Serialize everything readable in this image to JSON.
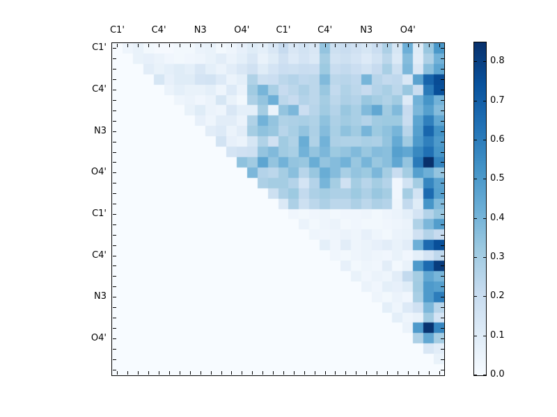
{
  "chart_data": {
    "type": "heatmap",
    "title": "",
    "n": 32,
    "x_tick_labels": [
      "C1'",
      "C4'",
      "N3",
      "O4'",
      "C1'",
      "C4'",
      "N3",
      "O4'"
    ],
    "y_tick_labels": [
      "C1'",
      "C4'",
      "N3",
      "O4'",
      "C1'",
      "C4'",
      "N3",
      "O4'"
    ],
    "label_cell_positions": [
      0,
      4,
      8,
      12,
      16,
      20,
      24,
      28
    ],
    "vmin": 0.0,
    "vmax": 0.85,
    "colorbar_tick_labels": [
      "0.0",
      "0.1",
      "0.2",
      "0.3",
      "0.4",
      "0.5",
      "0.6",
      "0.7",
      "0.8"
    ],
    "colorbar_tick_values": [
      0.0,
      0.1,
      0.2,
      0.3,
      0.4,
      0.5,
      0.6,
      0.7,
      0.8
    ],
    "colormap": {
      "name": "Blues",
      "stops": [
        "#f7fbff",
        "#deebf7",
        "#c6dbef",
        "#9ecae1",
        "#6baed6",
        "#4292c6",
        "#2171b5",
        "#08519c",
        "#08306b"
      ]
    },
    "matrix": [
      [
        0,
        0.04,
        0.06,
        0.02,
        0.01,
        0.01,
        0.02,
        0.02,
        0.05,
        0.06,
        0.02,
        0.04,
        0.07,
        0.1,
        0.08,
        0.13,
        0.21,
        0.13,
        0.16,
        0.13,
        0.34,
        0.18,
        0.2,
        0.17,
        0.14,
        0.19,
        0.28,
        0.14,
        0.42,
        0.1,
        0.33,
        0.51
      ],
      [
        0,
        0,
        0.06,
        0.07,
        0.05,
        0.03,
        0.02,
        0.03,
        0.04,
        0.06,
        0.09,
        0.05,
        0.08,
        0.13,
        0.06,
        0.1,
        0.17,
        0.11,
        0.15,
        0.12,
        0.3,
        0.16,
        0.18,
        0.15,
        0.11,
        0.16,
        0.24,
        0.12,
        0.37,
        0.09,
        0.28,
        0.41
      ],
      [
        0,
        0,
        0,
        0.09,
        0.06,
        0.08,
        0.1,
        0.08,
        0.13,
        0.08,
        0.05,
        0.09,
        0.13,
        0.17,
        0.1,
        0.15,
        0.19,
        0.18,
        0.2,
        0.19,
        0.32,
        0.2,
        0.22,
        0.19,
        0.16,
        0.21,
        0.29,
        0.18,
        0.39,
        0.13,
        0.36,
        0.46
      ],
      [
        0,
        0,
        0,
        0,
        0.14,
        0.07,
        0.1,
        0.1,
        0.15,
        0.16,
        0.11,
        0.05,
        0.08,
        0.27,
        0.18,
        0.19,
        0.24,
        0.26,
        0.23,
        0.24,
        0.38,
        0.24,
        0.25,
        0.23,
        0.4,
        0.25,
        0.22,
        0.23,
        0.13,
        0.47,
        0.68,
        0.76
      ],
      [
        0,
        0,
        0,
        0,
        0,
        0.05,
        0.08,
        0.06,
        0.06,
        0.08,
        0.04,
        0.11,
        0.05,
        0.31,
        0.4,
        0.29,
        0.21,
        0.24,
        0.28,
        0.24,
        0.33,
        0.22,
        0.27,
        0.24,
        0.21,
        0.26,
        0.29,
        0.24,
        0.33,
        0.2,
        0.61,
        0.75
      ],
      [
        0,
        0,
        0,
        0,
        0,
        0,
        0.04,
        0.05,
        0.03,
        0.05,
        0.14,
        0.06,
        0.02,
        0.28,
        0.34,
        0.42,
        0.24,
        0.21,
        0.26,
        0.24,
        0.3,
        0.24,
        0.28,
        0.26,
        0.33,
        0.3,
        0.27,
        0.31,
        0.11,
        0.41,
        0.52,
        0.41
      ],
      [
        0,
        0,
        0,
        0,
        0,
        0,
        0,
        0.06,
        0.1,
        0.05,
        0.04,
        0.13,
        0.08,
        0.08,
        0.3,
        0.05,
        0.34,
        0.39,
        0.19,
        0.25,
        0.31,
        0.26,
        0.33,
        0.29,
        0.38,
        0.45,
        0.31,
        0.38,
        0.21,
        0.39,
        0.48,
        0.37
      ],
      [
        0,
        0,
        0,
        0,
        0,
        0,
        0,
        0,
        0.07,
        0.04,
        0.09,
        0.09,
        0.05,
        0.27,
        0.41,
        0.34,
        0.27,
        0.28,
        0.29,
        0.27,
        0.35,
        0.28,
        0.31,
        0.29,
        0.26,
        0.31,
        0.32,
        0.32,
        0.2,
        0.46,
        0.59,
        0.45
      ],
      [
        0,
        0,
        0,
        0,
        0,
        0,
        0,
        0,
        0,
        0.09,
        0.11,
        0.05,
        0.09,
        0.3,
        0.35,
        0.33,
        0.25,
        0.29,
        0.34,
        0.28,
        0.37,
        0.29,
        0.35,
        0.31,
        0.4,
        0.32,
        0.35,
        0.4,
        0.25,
        0.48,
        0.67,
        0.53
      ],
      [
        0,
        0,
        0,
        0,
        0,
        0,
        0,
        0,
        0,
        0,
        0.16,
        0.07,
        0.05,
        0.14,
        0.27,
        0.17,
        0.31,
        0.27,
        0.43,
        0.27,
        0.41,
        0.28,
        0.27,
        0.27,
        0.29,
        0.28,
        0.34,
        0.44,
        0.31,
        0.5,
        0.59,
        0.5
      ],
      [
        0,
        0,
        0,
        0,
        0,
        0,
        0,
        0,
        0,
        0,
        0,
        0.15,
        0.17,
        0.18,
        0.34,
        0.38,
        0.31,
        0.29,
        0.41,
        0.34,
        0.39,
        0.32,
        0.34,
        0.38,
        0.33,
        0.37,
        0.36,
        0.48,
        0.45,
        0.56,
        0.64,
        0.52
      ],
      [
        0,
        0,
        0,
        0,
        0,
        0,
        0,
        0,
        0,
        0,
        0,
        0,
        0.35,
        0.31,
        0.46,
        0.34,
        0.41,
        0.34,
        0.33,
        0.43,
        0.34,
        0.37,
        0.41,
        0.33,
        0.4,
        0.33,
        0.36,
        0.45,
        0.34,
        0.61,
        0.85,
        0.58
      ],
      [
        0,
        0,
        0,
        0,
        0,
        0,
        0,
        0,
        0,
        0,
        0,
        0,
        0,
        0.39,
        0.26,
        0.24,
        0.3,
        0.36,
        0.25,
        0.33,
        0.43,
        0.37,
        0.29,
        0.34,
        0.32,
        0.39,
        0.3,
        0.2,
        0.3,
        0.48,
        0.42,
        0.34
      ],
      [
        0,
        0,
        0,
        0,
        0,
        0,
        0,
        0,
        0,
        0,
        0,
        0,
        0,
        0,
        0.28,
        0.3,
        0.3,
        0.26,
        0.15,
        0.26,
        0.4,
        0.3,
        0.17,
        0.3,
        0.25,
        0.3,
        0.26,
        0.03,
        0.16,
        0.3,
        0.57,
        0.47
      ],
      [
        0,
        0,
        0,
        0,
        0,
        0,
        0,
        0,
        0,
        0,
        0,
        0,
        0,
        0,
        0,
        0.18,
        0.28,
        0.32,
        0.22,
        0.28,
        0.3,
        0.28,
        0.28,
        0.32,
        0.28,
        0.33,
        0.3,
        0.03,
        0.3,
        0.16,
        0.66,
        0.48
      ],
      [
        0,
        0,
        0,
        0,
        0,
        0,
        0,
        0,
        0,
        0,
        0,
        0,
        0,
        0,
        0,
        0,
        0.12,
        0.28,
        0.18,
        0.24,
        0.28,
        0.24,
        0.24,
        0.28,
        0.24,
        0.28,
        0.26,
        0.04,
        0.22,
        0.1,
        0.52,
        0.38
      ],
      [
        0,
        0,
        0,
        0,
        0,
        0,
        0,
        0,
        0,
        0,
        0,
        0,
        0,
        0,
        0,
        0,
        0,
        0.03,
        0.02,
        0.03,
        0.04,
        0.02,
        0.03,
        0.03,
        0.04,
        0.02,
        0.04,
        0.05,
        0.08,
        0.15,
        0.26,
        0.33
      ],
      [
        0,
        0,
        0,
        0,
        0,
        0,
        0,
        0,
        0,
        0,
        0,
        0,
        0,
        0,
        0,
        0,
        0,
        0,
        0.05,
        0.02,
        0.04,
        0.05,
        0.02,
        0.03,
        0.02,
        0.02,
        0.03,
        0.04,
        0.05,
        0.27,
        0.39,
        0.49
      ],
      [
        0,
        0,
        0,
        0,
        0,
        0,
        0,
        0,
        0,
        0,
        0,
        0,
        0,
        0,
        0,
        0,
        0,
        0,
        0,
        0.04,
        0.03,
        0.04,
        0.05,
        0.04,
        0.07,
        0.04,
        0.02,
        0.05,
        0.06,
        0.17,
        0.26,
        0.21
      ],
      [
        0,
        0,
        0,
        0,
        0,
        0,
        0,
        0,
        0,
        0,
        0,
        0,
        0,
        0,
        0,
        0,
        0,
        0,
        0,
        0,
        0.08,
        0.03,
        0.09,
        0.04,
        0.05,
        0.07,
        0.09,
        0.06,
        0.09,
        0.42,
        0.66,
        0.75
      ],
      [
        0,
        0,
        0,
        0,
        0,
        0,
        0,
        0,
        0,
        0,
        0,
        0,
        0,
        0,
        0,
        0,
        0,
        0,
        0,
        0,
        0,
        0.03,
        0.02,
        0.04,
        0.05,
        0.04,
        0.03,
        0.06,
        0.03,
        0.08,
        0.15,
        0.23
      ],
      [
        0,
        0,
        0,
        0,
        0,
        0,
        0,
        0,
        0,
        0,
        0,
        0,
        0,
        0,
        0,
        0,
        0,
        0,
        0,
        0,
        0,
        0,
        0.07,
        0.02,
        0.04,
        0.03,
        0.09,
        0.02,
        0.06,
        0.5,
        0.66,
        0.81
      ],
      [
        0,
        0,
        0,
        0,
        0,
        0,
        0,
        0,
        0,
        0,
        0,
        0,
        0,
        0,
        0,
        0,
        0,
        0,
        0,
        0,
        0,
        0,
        0,
        0.06,
        0.03,
        0.05,
        0.04,
        0.09,
        0.22,
        0.3,
        0.45,
        0.4
      ],
      [
        0,
        0,
        0,
        0,
        0,
        0,
        0,
        0,
        0,
        0,
        0,
        0,
        0,
        0,
        0,
        0,
        0,
        0,
        0,
        0,
        0,
        0,
        0,
        0,
        0.05,
        0.03,
        0.08,
        0.07,
        0.1,
        0.31,
        0.5,
        0.48
      ],
      [
        0,
        0,
        0,
        0,
        0,
        0,
        0,
        0,
        0,
        0,
        0,
        0,
        0,
        0,
        0,
        0,
        0,
        0,
        0,
        0,
        0,
        0,
        0,
        0,
        0,
        0.04,
        0.02,
        0.05,
        0.03,
        0.29,
        0.5,
        0.6
      ],
      [
        0,
        0,
        0,
        0,
        0,
        0,
        0,
        0,
        0,
        0,
        0,
        0,
        0,
        0,
        0,
        0,
        0,
        0,
        0,
        0,
        0,
        0,
        0,
        0,
        0,
        0,
        0.08,
        0.04,
        0.11,
        0.17,
        0.39,
        0.25
      ],
      [
        0,
        0,
        0,
        0,
        0,
        0,
        0,
        0,
        0,
        0,
        0,
        0,
        0,
        0,
        0,
        0,
        0,
        0,
        0,
        0,
        0,
        0,
        0,
        0,
        0,
        0,
        0,
        0.08,
        0.04,
        0.06,
        0.31,
        0.15
      ],
      [
        0,
        0,
        0,
        0,
        0,
        0,
        0,
        0,
        0,
        0,
        0,
        0,
        0,
        0,
        0,
        0,
        0,
        0,
        0,
        0,
        0,
        0,
        0,
        0,
        0,
        0,
        0,
        0,
        0.05,
        0.5,
        0.84,
        0.57
      ],
      [
        0,
        0,
        0,
        0,
        0,
        0,
        0,
        0,
        0,
        0,
        0,
        0,
        0,
        0,
        0,
        0,
        0,
        0,
        0,
        0,
        0,
        0,
        0,
        0,
        0,
        0,
        0,
        0,
        0,
        0.28,
        0.45,
        0.3
      ],
      [
        0,
        0,
        0,
        0,
        0,
        0,
        0,
        0,
        0,
        0,
        0,
        0,
        0,
        0,
        0,
        0,
        0,
        0,
        0,
        0,
        0,
        0,
        0,
        0,
        0,
        0,
        0,
        0,
        0,
        0,
        0.13,
        0.09
      ],
      [
        0,
        0,
        0,
        0,
        0,
        0,
        0,
        0,
        0,
        0,
        0,
        0,
        0,
        0,
        0,
        0,
        0,
        0,
        0,
        0,
        0,
        0,
        0,
        0,
        0,
        0,
        0,
        0,
        0,
        0,
        0,
        0.06
      ],
      [
        0,
        0,
        0,
        0,
        0,
        0,
        0,
        0,
        0,
        0,
        0,
        0,
        0,
        0,
        0,
        0,
        0,
        0,
        0,
        0,
        0,
        0,
        0,
        0,
        0,
        0,
        0,
        0,
        0,
        0,
        0,
        0
      ]
    ]
  }
}
